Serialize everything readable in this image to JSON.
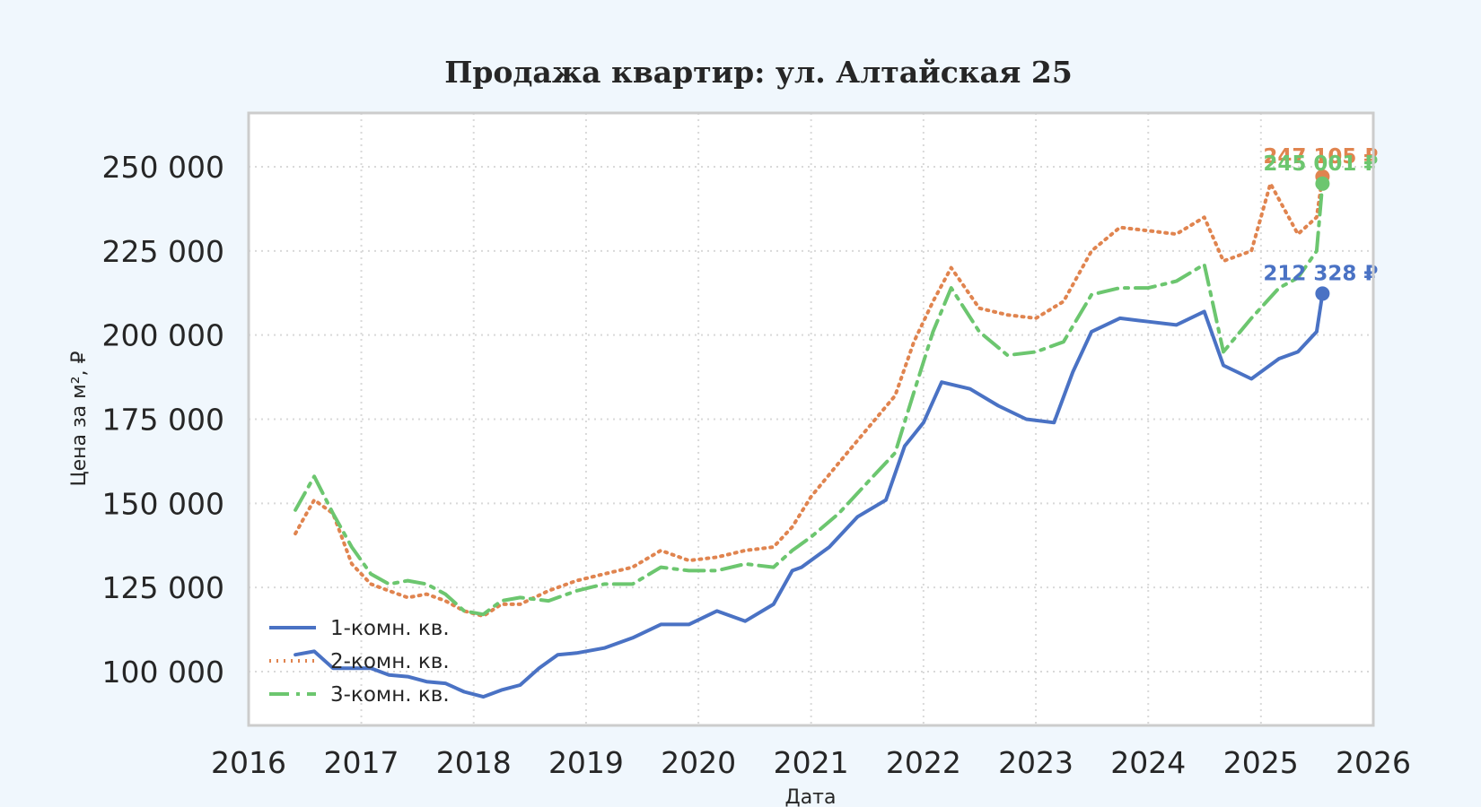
{
  "chart_data": {
    "type": "line",
    "title": "Продажа квартир: ул. Алтайская 25",
    "xlabel": "Дата",
    "ylabel": "Цена за м², ₽",
    "xlim": [
      "2016-01-01",
      "2026-01-01"
    ],
    "ylim": [
      84000,
      266000
    ],
    "x_ticks": [
      "2016",
      "2017",
      "2018",
      "2019",
      "2020",
      "2021",
      "2022",
      "2023",
      "2024",
      "2025",
      "2026"
    ],
    "y_ticks": [
      100000,
      125000,
      150000,
      175000,
      200000,
      225000,
      250000
    ],
    "y_tick_labels": [
      "100 000",
      "125 000",
      "150 000",
      "175 000",
      "200 000",
      "225 000",
      "250 000"
    ],
    "grid": true,
    "legend_position": "lower-left",
    "series": [
      {
        "name": "1-комн. кв.",
        "color": "#4a72c4",
        "style": "solid",
        "end_label": "212 328 ₽",
        "end_value": 212328,
        "end_date": "2025-07-20",
        "points": [
          [
            "2016-06-01",
            105000
          ],
          [
            "2016-08-01",
            106000
          ],
          [
            "2016-10-01",
            101000
          ],
          [
            "2016-12-01",
            101000
          ],
          [
            "2017-02-01",
            101000
          ],
          [
            "2017-04-01",
            99000
          ],
          [
            "2017-06-01",
            98500
          ],
          [
            "2017-08-01",
            97000
          ],
          [
            "2017-10-01",
            96500
          ],
          [
            "2017-12-01",
            94000
          ],
          [
            "2018-02-01",
            92500
          ],
          [
            "2018-04-01",
            94500
          ],
          [
            "2018-06-01",
            96000
          ],
          [
            "2018-08-01",
            101000
          ],
          [
            "2018-10-01",
            105000
          ],
          [
            "2018-12-01",
            105500
          ],
          [
            "2019-03-01",
            107000
          ],
          [
            "2019-06-01",
            110000
          ],
          [
            "2019-09-01",
            114000
          ],
          [
            "2019-12-01",
            114000
          ],
          [
            "2020-03-01",
            118000
          ],
          [
            "2020-06-01",
            115000
          ],
          [
            "2020-09-01",
            120000
          ],
          [
            "2020-11-01",
            130000
          ],
          [
            "2020-12-01",
            131000
          ],
          [
            "2021-03-01",
            137000
          ],
          [
            "2021-06-01",
            146000
          ],
          [
            "2021-09-01",
            151000
          ],
          [
            "2021-11-01",
            167000
          ],
          [
            "2022-01-01",
            174000
          ],
          [
            "2022-03-01",
            186000
          ],
          [
            "2022-06-01",
            184000
          ],
          [
            "2022-09-01",
            179000
          ],
          [
            "2022-12-01",
            175000
          ],
          [
            "2023-03-01",
            174000
          ],
          [
            "2023-05-01",
            189000
          ],
          [
            "2023-07-01",
            201000
          ],
          [
            "2023-10-01",
            205000
          ],
          [
            "2024-01-01",
            204000
          ],
          [
            "2024-04-01",
            203000
          ],
          [
            "2024-07-01",
            207000
          ],
          [
            "2024-09-01",
            191000
          ],
          [
            "2024-12-01",
            187000
          ],
          [
            "2025-03-01",
            193000
          ],
          [
            "2025-05-01",
            195000
          ],
          [
            "2025-07-01",
            201000
          ],
          [
            "2025-07-20",
            212328
          ]
        ]
      },
      {
        "name": "2-комн. кв.",
        "color": "#e0844f",
        "style": "dotted",
        "end_label": "247 105 ₽",
        "end_value": 247105,
        "end_date": "2025-07-20",
        "points": [
          [
            "2016-06-01",
            141000
          ],
          [
            "2016-07-01",
            146000
          ],
          [
            "2016-08-01",
            151000
          ],
          [
            "2016-10-01",
            147000
          ],
          [
            "2016-12-01",
            132000
          ],
          [
            "2017-02-01",
            126000
          ],
          [
            "2017-04-01",
            124000
          ],
          [
            "2017-06-01",
            122000
          ],
          [
            "2017-08-01",
            123000
          ],
          [
            "2017-10-01",
            121000
          ],
          [
            "2017-12-01",
            118000
          ],
          [
            "2018-02-01",
            116500
          ],
          [
            "2018-04-01",
            120000
          ],
          [
            "2018-06-01",
            120000
          ],
          [
            "2018-09-01",
            124000
          ],
          [
            "2018-12-01",
            127000
          ],
          [
            "2019-03-01",
            129000
          ],
          [
            "2019-06-01",
            131000
          ],
          [
            "2019-09-01",
            136000
          ],
          [
            "2019-12-01",
            133000
          ],
          [
            "2020-03-01",
            134000
          ],
          [
            "2020-06-01",
            136000
          ],
          [
            "2020-09-01",
            137000
          ],
          [
            "2020-11-01",
            143000
          ],
          [
            "2021-01-01",
            152000
          ],
          [
            "2021-04-01",
            162000
          ],
          [
            "2021-07-01",
            172000
          ],
          [
            "2021-10-01",
            182000
          ],
          [
            "2021-12-01",
            198000
          ],
          [
            "2022-02-01",
            210000
          ],
          [
            "2022-04-01",
            220000
          ],
          [
            "2022-07-01",
            208000
          ],
          [
            "2022-10-01",
            206000
          ],
          [
            "2023-01-01",
            205000
          ],
          [
            "2023-04-01",
            210000
          ],
          [
            "2023-07-01",
            225000
          ],
          [
            "2023-10-01",
            232000
          ],
          [
            "2024-01-01",
            231000
          ],
          [
            "2024-04-01",
            230000
          ],
          [
            "2024-07-01",
            235000
          ],
          [
            "2024-09-01",
            222000
          ],
          [
            "2024-12-01",
            225000
          ],
          [
            "2025-02-01",
            245000
          ],
          [
            "2025-05-01",
            230000
          ],
          [
            "2025-07-01",
            235000
          ],
          [
            "2025-07-20",
            247105
          ]
        ]
      },
      {
        "name": "3-комн. кв.",
        "color": "#6cc66f",
        "style": "dashdot",
        "end_label": "245 001 ₽",
        "end_value": 245001,
        "end_date": "2025-07-20",
        "points": [
          [
            "2016-06-01",
            148000
          ],
          [
            "2016-08-01",
            158000
          ],
          [
            "2016-10-01",
            147000
          ],
          [
            "2016-12-01",
            137000
          ],
          [
            "2017-02-01",
            129000
          ],
          [
            "2017-04-01",
            126000
          ],
          [
            "2017-06-01",
            127000
          ],
          [
            "2017-08-01",
            126000
          ],
          [
            "2017-10-01",
            123000
          ],
          [
            "2017-12-01",
            118000
          ],
          [
            "2018-02-01",
            117000
          ],
          [
            "2018-04-01",
            121000
          ],
          [
            "2018-06-01",
            122000
          ],
          [
            "2018-09-01",
            121000
          ],
          [
            "2018-12-01",
            124000
          ],
          [
            "2019-03-01",
            126000
          ],
          [
            "2019-06-01",
            126000
          ],
          [
            "2019-09-01",
            131000
          ],
          [
            "2019-12-01",
            130000
          ],
          [
            "2020-03-01",
            130000
          ],
          [
            "2020-06-01",
            132000
          ],
          [
            "2020-09-01",
            131000
          ],
          [
            "2020-11-01",
            136000
          ],
          [
            "2021-01-01",
            140000
          ],
          [
            "2021-04-01",
            147000
          ],
          [
            "2021-07-01",
            156000
          ],
          [
            "2021-10-01",
            165000
          ],
          [
            "2021-12-01",
            183000
          ],
          [
            "2022-02-01",
            201000
          ],
          [
            "2022-04-01",
            214000
          ],
          [
            "2022-07-01",
            201000
          ],
          [
            "2022-10-01",
            194000
          ],
          [
            "2023-01-01",
            195000
          ],
          [
            "2023-04-01",
            198000
          ],
          [
            "2023-07-01",
            212000
          ],
          [
            "2023-10-01",
            214000
          ],
          [
            "2024-01-01",
            214000
          ],
          [
            "2024-04-01",
            216000
          ],
          [
            "2024-07-01",
            221000
          ],
          [
            "2024-09-01",
            195000
          ],
          [
            "2024-12-01",
            205000
          ],
          [
            "2025-03-01",
            214000
          ],
          [
            "2025-05-01",
            217000
          ],
          [
            "2025-07-01",
            225000
          ],
          [
            "2025-07-20",
            245001
          ]
        ]
      }
    ]
  }
}
